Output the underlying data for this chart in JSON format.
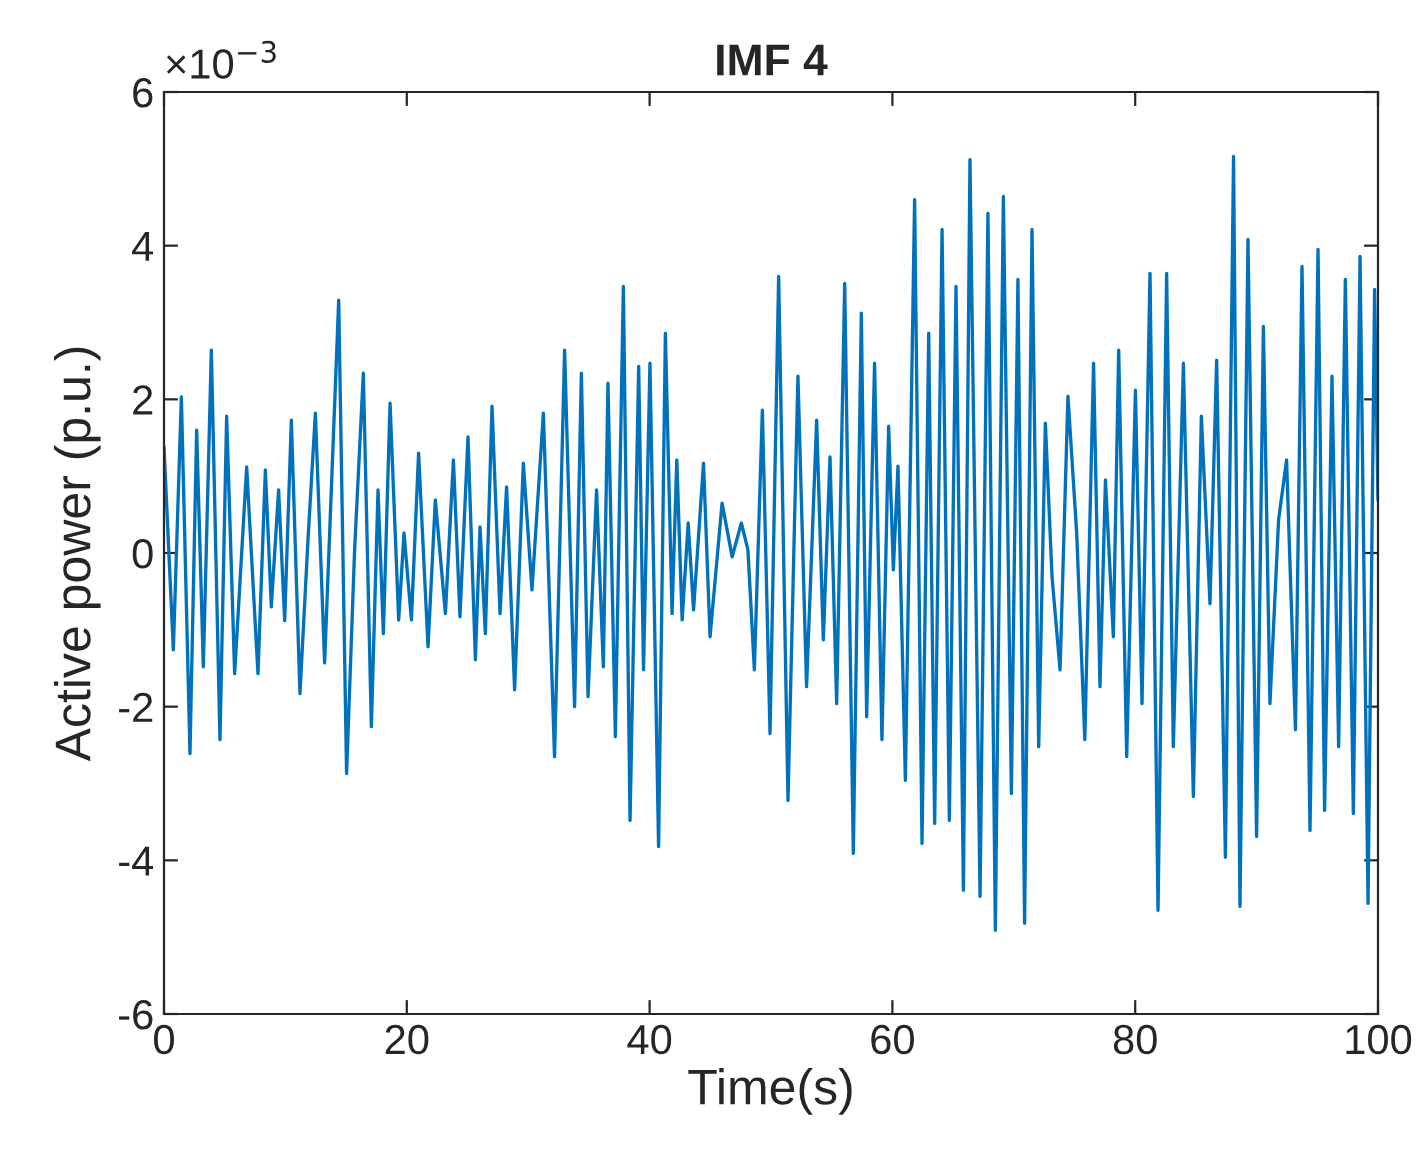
{
  "chart_data": {
    "type": "line",
    "title": "IMF 4",
    "xlabel": "Time(s)",
    "ylabel": "Active power (p.u.)",
    "annotations": [
      "×10$^{−3}$"
    ],
    "xlim": [
      0,
      100
    ],
    "xticks": [
      0,
      20,
      40,
      60,
      80,
      100
    ],
    "ylim": [
      -6,
      6
    ],
    "yticks": [
      -6,
      -4,
      -2,
      0,
      2,
      4,
      6
    ],
    "grid": false,
    "legend": false,
    "marker": "none",
    "line_style": "solid",
    "series": [
      {
        "color": "#0072bd",
        "x": [
          0,
          0.77,
          1.43,
          2.14,
          2.69,
          3.24,
          3.9,
          4.61,
          5.16,
          5.82,
          6.81,
          7.74,
          8.35,
          8.84,
          9.44,
          9.94,
          10.49,
          11.2,
          11.86,
          12.47,
          13.23,
          14.39,
          15.04,
          15.7,
          16.42,
          17.08,
          17.63,
          18.07,
          18.62,
          19.33,
          19.77,
          20.38,
          20.97,
          21.75,
          22.35,
          23.18,
          23.84,
          24.38,
          25.04,
          25.65,
          26.03,
          26.47,
          27.02,
          27.68,
          28.22,
          28.88,
          29.6,
          30.31,
          31.25,
          32.17,
          33.0,
          33.82,
          34.38,
          34.93,
          35.63,
          36.19,
          36.57,
          37.18,
          37.84,
          38.39,
          39.1,
          39.5,
          40.03,
          40.74,
          41.3,
          41.85,
          42.24,
          42.68,
          43.18,
          43.62,
          44.44,
          44.98,
          45.97,
          46.8,
          47.56,
          48.1,
          48.63,
          49.29,
          49.92,
          50.63,
          51.4,
          52.22,
          52.93,
          53.76,
          54.31,
          54.86,
          55.41,
          56.07,
          56.78,
          57.44,
          57.88,
          58.53,
          59.14,
          59.69,
          60.08,
          60.46,
          61.07,
          61.83,
          62.44,
          62.99,
          63.48,
          64.09,
          64.69,
          65.24,
          65.85,
          66.39,
          67.22,
          67.87,
          68.48,
          69.14,
          69.8,
          70.34,
          70.89,
          71.5,
          72.05,
          72.6,
          73.15,
          73.81,
          74.46,
          75.18,
          75.85,
          76.57,
          77.1,
          77.55,
          78.2,
          78.64,
          79.3,
          80.02,
          80.56,
          81.22,
          81.88,
          82.59,
          83.14,
          83.97,
          84.79,
          85.45,
          86.16,
          86.71,
          87.43,
          88.1,
          88.63,
          89.29,
          90.0,
          90.56,
          91.1,
          91.81,
          92.47,
          93.2,
          93.74,
          94.4,
          95.06,
          95.6,
          96.21,
          96.76,
          97.31,
          97.97,
          98.52,
          99.18,
          99.72,
          100
        ],
        "values": [
          1.38,
          -1.26,
          2.03,
          -2.61,
          1.6,
          -1.48,
          2.64,
          -2.43,
          1.78,
          -1.57,
          1.12,
          -1.57,
          1.08,
          -0.7,
          0.82,
          -0.88,
          1.73,
          -1.83,
          0.17,
          1.82,
          -1.43,
          3.29,
          -2.87,
          0.04,
          2.34,
          -2.26,
          0.82,
          -1.05,
          1.95,
          -0.87,
          0.26,
          -0.87,
          1.3,
          -1.22,
          0.69,
          -0.79,
          1.21,
          -0.83,
          1.51,
          -1.39,
          0.34,
          -1.05,
          1.91,
          -0.79,
          0.86,
          -1.78,
          1.17,
          -0.48,
          1.82,
          -2.65,
          2.64,
          -2.0,
          2.34,
          -1.87,
          0.82,
          -1.48,
          2.21,
          -2.39,
          3.47,
          -3.48,
          2.43,
          -1.52,
          2.47,
          -3.82,
          2.86,
          -0.79,
          1.21,
          -0.87,
          0.39,
          -0.74,
          1.17,
          -1.09,
          0.65,
          -0.05,
          0.39,
          0.04,
          -1.52,
          1.86,
          -2.35,
          3.6,
          -3.22,
          2.3,
          -1.74,
          1.73,
          -1.13,
          1.25,
          -1.96,
          3.51,
          -3.91,
          3.12,
          -2.13,
          2.47,
          -2.43,
          1.65,
          -0.22,
          1.13,
          -2.96,
          4.6,
          -3.78,
          2.86,
          -3.52,
          4.21,
          -3.48,
          3.47,
          -4.39,
          5.12,
          -4.47,
          4.42,
          -4.91,
          4.64,
          -3.13,
          3.56,
          -4.82,
          4.21,
          -2.52,
          1.69,
          -0.31,
          -1.52,
          2.04,
          0.26,
          -2.43,
          2.47,
          -1.74,
          0.95,
          -1.09,
          2.64,
          -2.65,
          2.12,
          -1.96,
          3.64,
          -4.65,
          3.64,
          -2.52,
          2.47,
          -3.17,
          1.78,
          -0.66,
          2.51,
          -3.96,
          5.16,
          -4.6,
          4.08,
          -3.69,
          2.95,
          -1.96,
          0.43,
          1.21,
          -2.3,
          3.73,
          -3.61,
          3.95,
          -3.35,
          2.3,
          -2.52,
          3.56,
          -3.39,
          3.86,
          -4.56,
          3.43,
          0.69
        ]
      }
    ]
  }
}
